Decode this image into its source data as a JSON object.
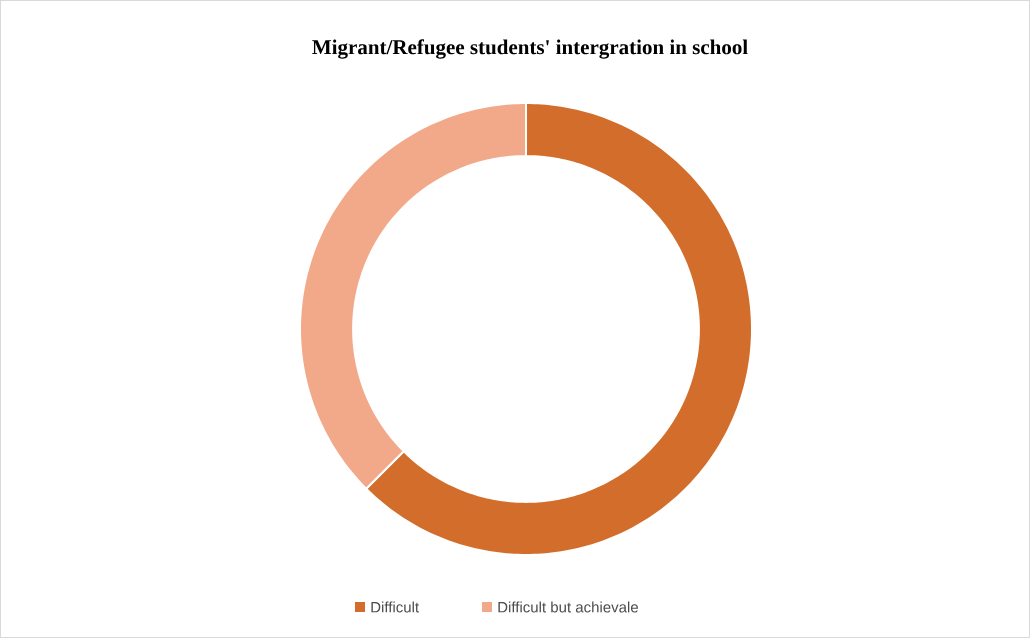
{
  "chart_data": {
    "type": "donut",
    "title": "Migrant/Refugee students' intergration in school",
    "categories": [
      "Difficult",
      "Difficult but achievale"
    ],
    "values": [
      62.5,
      37.5
    ],
    "colors": [
      "#d36d2b",
      "#f2a98a"
    ],
    "legend": "bottom"
  }
}
